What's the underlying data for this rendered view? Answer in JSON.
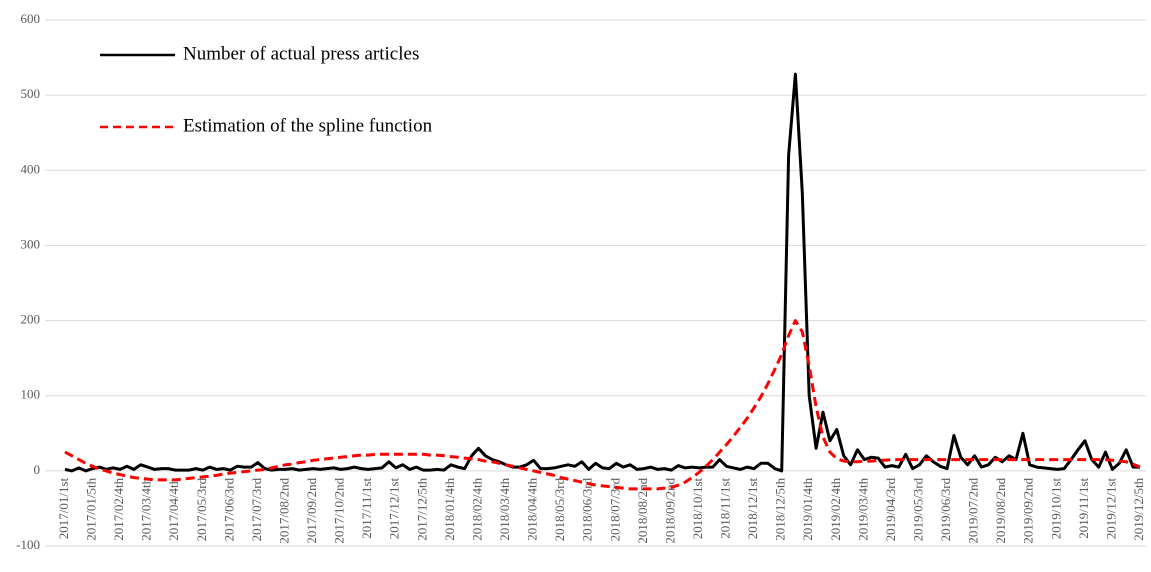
{
  "chart_data": {
    "type": "line",
    "categories": [
      "2017/01/1st",
      null,
      null,
      null,
      "2017/01/5th",
      null,
      null,
      null,
      "2017/02/4th",
      null,
      null,
      null,
      "2017/03/4th",
      null,
      null,
      null,
      "2017/04/4th",
      null,
      null,
      null,
      "2017/05/3rd",
      null,
      null,
      null,
      "2017/06/3rd",
      null,
      null,
      null,
      "2017/07/3rd",
      null,
      null,
      null,
      "2017/08/2nd",
      null,
      null,
      null,
      "2017/09/2nd",
      null,
      null,
      null,
      "2017/10/2nd",
      null,
      null,
      null,
      "2017/11/1st",
      null,
      null,
      null,
      "2017/12/1st",
      null,
      null,
      null,
      "2017/12/5th",
      null,
      null,
      null,
      "2018/01/4th",
      null,
      null,
      null,
      "2018/02/4th",
      null,
      null,
      null,
      "2018/03/4th",
      null,
      null,
      null,
      "2018/04/4th",
      null,
      null,
      null,
      "2018/05/3rd",
      null,
      null,
      null,
      "2018/06/3rd",
      null,
      null,
      null,
      "2018/07/3rd",
      null,
      null,
      null,
      "2018/08/2nd",
      null,
      null,
      null,
      "2018/09/2nd",
      null,
      null,
      null,
      "2018/10/1st",
      null,
      null,
      null,
      "2018/11/1st",
      null,
      null,
      null,
      "2018/12/1st",
      null,
      null,
      null,
      "2018/12/5th",
      null,
      null,
      null,
      "2019/01/4th",
      null,
      null,
      null,
      "2019/02/4th",
      null,
      null,
      null,
      "2019/03/4th",
      null,
      null,
      null,
      "2019/04/3rd",
      null,
      null,
      null,
      "2019/05/3rd",
      null,
      null,
      null,
      "2019/06/3rd",
      null,
      null,
      null,
      "2019/07/2nd",
      null,
      null,
      null,
      "2019/08/2nd",
      null,
      null,
      null,
      "2019/09/2nd",
      null,
      null,
      null,
      "2019/10/1st",
      null,
      null,
      null,
      "2019/11/1st",
      null,
      null,
      null,
      "2019/12/1st",
      null,
      null,
      null,
      "2019/12/5th"
    ],
    "series": [
      {
        "name": "Number of actual press articles",
        "color": "#000000",
        "dash": false,
        "values": [
          2,
          0,
          4,
          0,
          3,
          5,
          2,
          4,
          2,
          6,
          2,
          8,
          5,
          2,
          3,
          3,
          1,
          1,
          1,
          3,
          1,
          5,
          2,
          3,
          1,
          6,
          5,
          5,
          11,
          3,
          1,
          2,
          2,
          3,
          1,
          2,
          3,
          2,
          3,
          4,
          2,
          3,
          5,
          3,
          2,
          3,
          4,
          12,
          4,
          8,
          2,
          5,
          1,
          1,
          2,
          1,
          8,
          5,
          3,
          20,
          30,
          20,
          15,
          12,
          8,
          5,
          5,
          8,
          14,
          3,
          3,
          4,
          6,
          8,
          6,
          12,
          2,
          10,
          4,
          3,
          10,
          5,
          8,
          2,
          3,
          5,
          2,
          3,
          1,
          7,
          4,
          5,
          4,
          5,
          5,
          15,
          6,
          4,
          2,
          5,
          3,
          10,
          10,
          3,
          0,
          420,
          528,
          370,
          100,
          30,
          78,
          40,
          55,
          20,
          8,
          28,
          15,
          18,
          17,
          5,
          7,
          5,
          22,
          3,
          8,
          20,
          12,
          6,
          3,
          47,
          18,
          8,
          20,
          5,
          8,
          18,
          12,
          20,
          15,
          50,
          8,
          5,
          4,
          3,
          2,
          3,
          15,
          28,
          40,
          15,
          5,
          25,
          2,
          10,
          28,
          5,
          5
        ]
      },
      {
        "name": "Estimation of the spline function",
        "color": "#ff0000",
        "dash": true,
        "values": [
          25,
          20,
          15,
          10,
          6,
          2,
          0,
          -3,
          -5,
          -7,
          -9,
          -10,
          -11,
          -12,
          -12,
          -12,
          -12,
          -11,
          -10,
          -9,
          -8,
          -7,
          -6,
          -4,
          -3,
          -2,
          -1,
          0,
          1,
          2,
          4,
          6,
          8,
          9,
          11,
          12,
          14,
          15,
          16,
          17,
          18,
          19,
          20,
          21,
          21,
          22,
          22,
          22,
          22,
          22,
          22,
          22,
          22,
          21,
          21,
          20,
          19,
          18,
          17,
          16,
          15,
          13,
          12,
          10,
          8,
          6,
          4,
          2,
          0,
          -2,
          -4,
          -6,
          -9,
          -11,
          -13,
          -15,
          -17,
          -19,
          -20,
          -21,
          -22,
          -23,
          -24,
          -24,
          -24,
          -24,
          -24,
          -23,
          -22,
          -19,
          -15,
          -9,
          -2,
          6,
          15,
          25,
          35,
          46,
          58,
          70,
          84,
          99,
          116,
          135,
          155,
          180,
          200,
          185,
          140,
          85,
          45,
          25,
          16,
          13,
          12,
          12,
          13,
          13,
          14,
          14,
          15,
          15,
          15,
          15,
          15,
          15,
          15,
          15,
          15,
          15,
          15,
          15,
          15,
          15,
          15,
          15,
          15,
          15,
          15,
          15,
          15,
          15,
          15,
          15,
          15,
          15,
          15,
          15,
          15,
          15,
          15,
          15,
          14,
          13,
          12,
          9,
          5
        ]
      }
    ],
    "ylim": [
      -100,
      600
    ],
    "yticks": [
      -100,
      0,
      100,
      200,
      300,
      400,
      500,
      600
    ],
    "grid": true,
    "legend": "upper left"
  }
}
